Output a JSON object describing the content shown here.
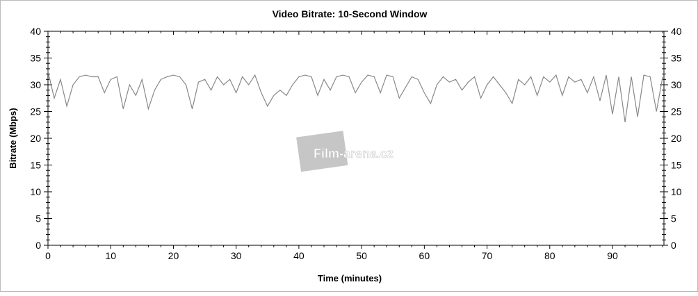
{
  "chart_data": {
    "type": "line",
    "title": "Video Bitrate: 10-Second Window",
    "xlabel": "Time (minutes)",
    "ylabel": "Bitrate (Mbps)",
    "xlim": [
      0,
      98.2
    ],
    "ylim": [
      0,
      40
    ],
    "xticks": [
      0,
      10,
      20,
      30,
      40,
      50,
      60,
      70,
      80,
      90
    ],
    "yticks": [
      0,
      5,
      10,
      15,
      20,
      25,
      30,
      35,
      40
    ],
    "right_axis": true,
    "grid": false,
    "line_color": "#888888",
    "watermark": "Film-arena.cz",
    "series": [
      {
        "x": [
          0,
          1,
          2,
          3,
          4,
          5,
          6,
          7,
          8,
          9,
          10,
          11,
          12,
          13,
          14,
          15,
          16,
          17,
          18,
          19,
          20,
          21,
          22,
          23,
          24,
          25,
          26,
          27,
          28,
          29,
          30,
          31,
          32,
          33,
          34,
          35,
          36,
          37,
          38,
          39,
          40,
          41,
          42,
          43,
          44,
          45,
          46,
          47,
          48,
          49,
          50,
          51,
          52,
          53,
          54,
          55,
          56,
          57,
          58,
          59,
          60,
          61,
          62,
          63,
          64,
          65,
          66,
          67,
          68,
          69,
          70,
          71,
          72,
          73,
          74,
          75,
          76,
          77,
          78,
          79,
          80,
          81,
          82,
          83,
          84,
          85,
          86,
          87,
          88,
          89,
          90,
          91,
          92,
          93,
          94,
          95,
          96,
          97,
          98
        ],
        "values": [
          32.5,
          27.5,
          31,
          26,
          30,
          31.5,
          31.8,
          31.5,
          31.5,
          28.5,
          31,
          31.5,
          25.5,
          30,
          28,
          31,
          25.5,
          29,
          31,
          31.5,
          31.8,
          31.5,
          30,
          25.5,
          30.5,
          31,
          29,
          31.5,
          30,
          31,
          28.5,
          31.5,
          30,
          31.8,
          28.5,
          26,
          28,
          29,
          28,
          30,
          31.5,
          31.8,
          31.5,
          28,
          31,
          29,
          31.5,
          31.8,
          31.5,
          28.5,
          30.5,
          31.8,
          31.5,
          28.5,
          31.8,
          31.5,
          27.5,
          29.5,
          31.5,
          31,
          28.5,
          26.5,
          30,
          31.5,
          30.5,
          31,
          29,
          30.5,
          31.5,
          27.5,
          30,
          31.5,
          30,
          28.5,
          26.5,
          31,
          30,
          31.5,
          28,
          31.5,
          30.5,
          31.8,
          28,
          31.5,
          30.5,
          31,
          28.5,
          31.5,
          27,
          31.8,
          24.5,
          31.5,
          23,
          31.5,
          24,
          31.8,
          31.5,
          25,
          31.5
        ]
      }
    ]
  }
}
